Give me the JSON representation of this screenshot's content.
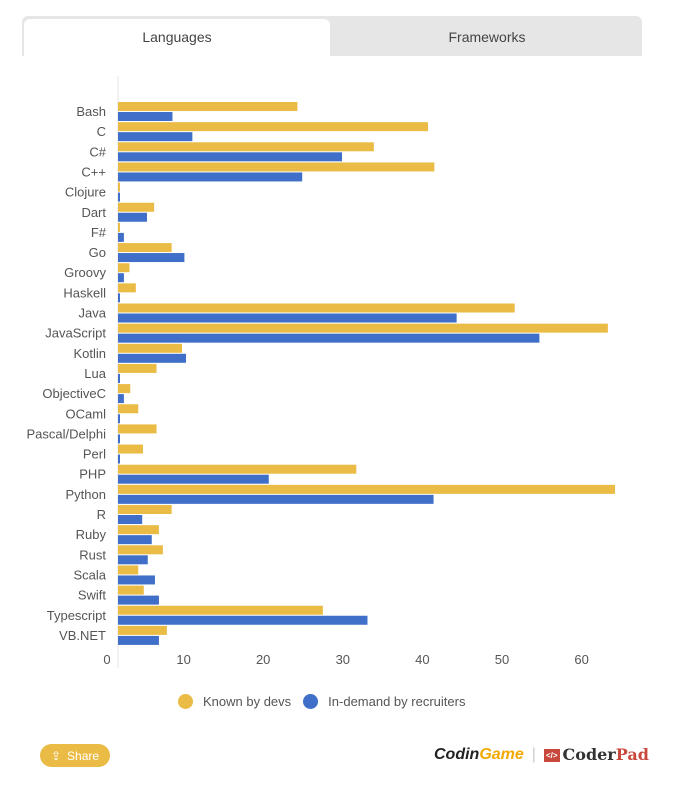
{
  "tabs": [
    {
      "label": "Languages",
      "active": true
    },
    {
      "label": "Frameworks",
      "active": false
    }
  ],
  "chart_data": {
    "type": "bar",
    "orientation": "horizontal",
    "categories": [
      "Bash",
      "C",
      "C#",
      "C++",
      "Clojure",
      "Dart",
      "F#",
      "Go",
      "Groovy",
      "Haskell",
      "Java",
      "JavaScript",
      "Kotlin",
      "Lua",
      "ObjectiveC",
      "OCaml",
      "Pascal/Delphi",
      "Perl",
      "PHP",
      "Python",
      "R",
      "Ruby",
      "Rust",
      "Scala",
      "Swift",
      "Typescript",
      "VB.NET"
    ],
    "series": [
      {
        "name": "Known by devs",
        "color": "#ebbc45",
        "values": [
          24.3,
          40.7,
          33.9,
          41.5,
          1.5,
          6.3,
          1.5,
          8.5,
          3.2,
          4.0,
          51.6,
          63.3,
          9.8,
          6.6,
          3.3,
          4.3,
          6.6,
          4.9,
          31.7,
          64.2,
          8.5,
          6.9,
          7.4,
          4.3,
          5.0,
          27.5,
          7.9
        ]
      },
      {
        "name": "In-demand by recruiters",
        "color": "#3f6fc8",
        "values": [
          8.6,
          11.1,
          29.9,
          24.9,
          2.0,
          5.4,
          2.5,
          10.1,
          2.5,
          1.9,
          44.3,
          54.7,
          10.3,
          2.0,
          2.5,
          1.5,
          2.0,
          2.0,
          20.7,
          41.4,
          4.8,
          6.0,
          5.5,
          6.4,
          6.9,
          33.1,
          6.9
        ]
      }
    ],
    "xticks": [
      "0",
      "10",
      "20",
      "30",
      "40",
      "50",
      "60"
    ],
    "xlim": [
      0,
      65
    ],
    "legend": "bottom",
    "grid": false
  },
  "legend": {
    "items": [
      "Known by devs",
      "In-demand by recruiters"
    ]
  },
  "footer": {
    "share_label": "Share",
    "logo_codingame_1": "Codin",
    "logo_codingame_2": "Game",
    "logo_coderpad_1": "Coder",
    "logo_coderpad_2": "Pad"
  }
}
